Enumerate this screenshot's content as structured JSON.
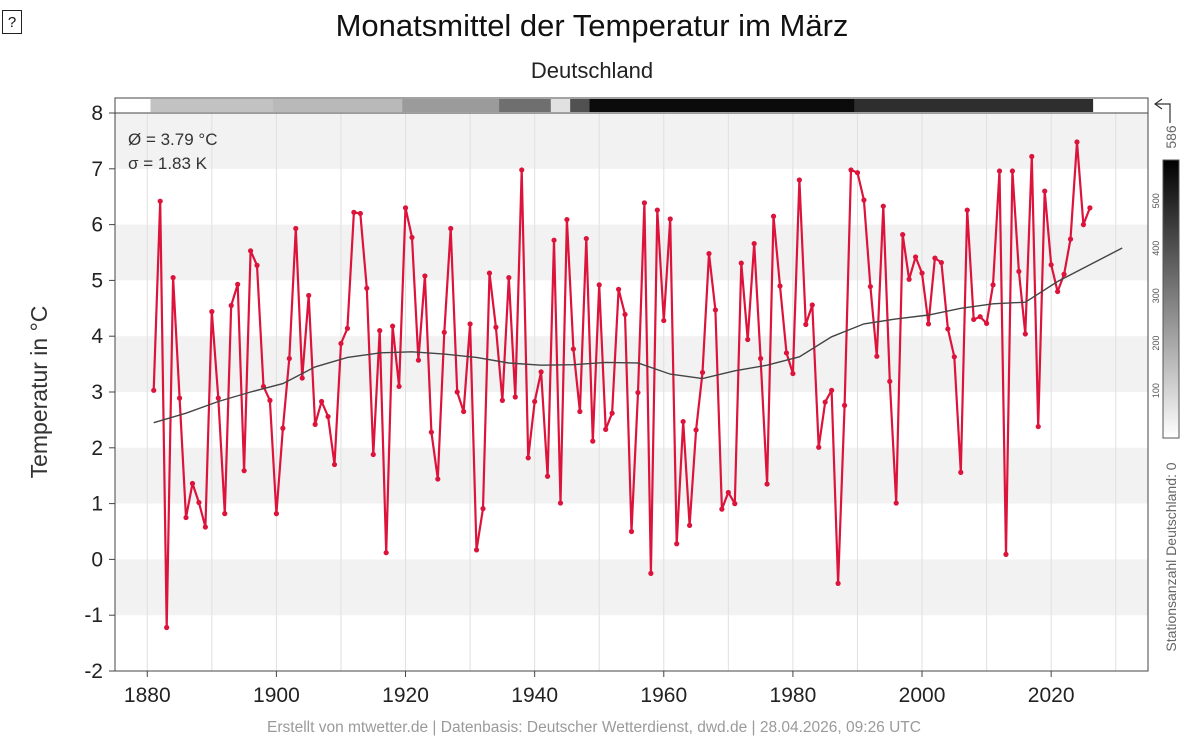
{
  "ui": {
    "help_label": "?"
  },
  "chart_data": {
    "type": "line",
    "title": "Monatsmittel der Temperatur im März",
    "subtitle": "Deutschland",
    "ylabel": "Temperatur in °C",
    "xlabel": "",
    "xlim": [
      1875,
      2035
    ],
    "ylim": [
      -2,
      8
    ],
    "x_ticks": [
      1880,
      1900,
      1920,
      1940,
      1960,
      1980,
      2000,
      2020
    ],
    "y_ticks": [
      -2,
      -1,
      0,
      1,
      2,
      3,
      4,
      5,
      6,
      7,
      8
    ],
    "stats": {
      "mean": "Ø = 3.79 °C",
      "sigma": "σ = 1.83 K"
    },
    "footer": "Erstellt von mtwetter.de | Datenbasis: Deutscher Wetterdienst, dwd.de | 28.04.2026, 09:26 UTC",
    "grid": true,
    "colors": {
      "series": "#dc143c",
      "trend": "#444444",
      "band": "#f2f2f2"
    },
    "series": [
      {
        "x_start": 1881,
        "values": [
          3.03,
          6.42,
          -1.22,
          5.05,
          2.89,
          0.75,
          1.36,
          1.02,
          0.58,
          4.44,
          2.89,
          0.82,
          4.55,
          4.93,
          1.59,
          5.53,
          5.27,
          3.1,
          2.85,
          0.82,
          2.35,
          3.6,
          5.93,
          3.25,
          4.73,
          2.42,
          2.83,
          2.56,
          1.7,
          3.87,
          4.14,
          6.22,
          6.2,
          4.86,
          1.88,
          4.1,
          0.12,
          4.18,
          3.1,
          6.3,
          5.77,
          3.57,
          5.08,
          2.28,
          1.44,
          4.07,
          5.93,
          3.0,
          2.65,
          4.22,
          0.17,
          0.91,
          5.13,
          4.16,
          2.85,
          5.05,
          2.91,
          6.98,
          1.82,
          2.83,
          3.36,
          1.49,
          5.72,
          1.01,
          6.09,
          3.77,
          2.65,
          5.75,
          2.12,
          4.92,
          2.33,
          2.62,
          4.84,
          4.39,
          0.5,
          2.99,
          6.39,
          -0.25,
          6.26,
          4.28,
          6.1,
          0.28,
          2.47,
          0.61,
          2.32,
          3.35,
          5.48,
          4.47,
          0.9,
          1.2,
          1.0,
          5.31,
          3.94,
          5.66,
          3.6,
          1.35,
          6.15,
          4.9,
          3.7,
          3.33,
          6.8,
          4.21,
          4.56,
          2.01,
          2.82,
          3.03,
          -0.43,
          2.76,
          6.98,
          6.93,
          6.44,
          4.89,
          3.64,
          6.33,
          3.19,
          1.01,
          5.82,
          5.02,
          5.42,
          5.13,
          4.22,
          5.4,
          5.32,
          4.13,
          3.63,
          1.56,
          6.26,
          4.3,
          4.35,
          4.23,
          4.92,
          6.96,
          0.09,
          6.96,
          5.16,
          4.04,
          7.22,
          2.38,
          6.6,
          5.28,
          4.8,
          5.11,
          5.74,
          7.48,
          6.0,
          6.3
        ]
      },
      {
        "name": "",
        "x_start": 1881,
        "step": 5,
        "values": [
          2.45,
          2.62,
          2.83,
          3.0,
          3.15,
          3.45,
          3.62,
          3.7,
          3.72,
          3.68,
          3.62,
          3.52,
          3.48,
          3.49,
          3.53,
          3.52,
          3.32,
          3.24,
          3.38,
          3.48,
          3.63,
          3.99,
          4.22,
          4.31,
          4.38,
          4.5,
          4.58,
          4.61,
          4.98,
          5.28,
          5.58
        ]
      }
    ],
    "station_bar": {
      "label": "Stationsanzahl Deutschland: 0",
      "max_label": "586",
      "max": 586,
      "legend_ticks": [
        100,
        200,
        300,
        400,
        500
      ],
      "segments": [
        {
          "from": 1881,
          "to": 1900,
          "count": 140
        },
        {
          "from": 1900,
          "to": 1920,
          "count": 160
        },
        {
          "from": 1920,
          "to": 1935,
          "count": 230
        },
        {
          "from": 1935,
          "to": 1943,
          "count": 330
        },
        {
          "from": 1943,
          "to": 1946,
          "count": 70
        },
        {
          "from": 1946,
          "to": 1949,
          "count": 400
        },
        {
          "from": 1949,
          "to": 1990,
          "count": 560
        },
        {
          "from": 1990,
          "to": 2026,
          "count": 480
        }
      ]
    }
  }
}
